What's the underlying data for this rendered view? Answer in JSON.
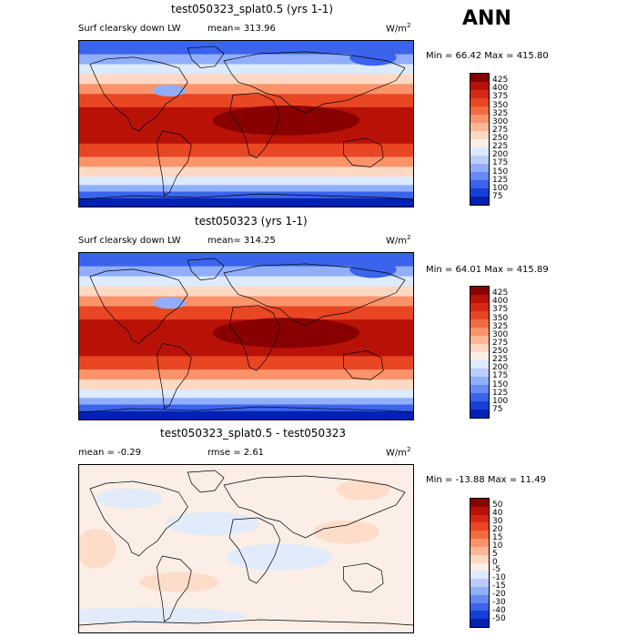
{
  "season": "ANN",
  "colors": {
    "abs_scale": [
      "#000a78",
      "#0022b4",
      "#1540d8",
      "#3b63ec",
      "#6689f4",
      "#91aefa",
      "#bccdfc",
      "#ddeafd",
      "#fbeee6",
      "#fdd9c4",
      "#fcb896",
      "#fa936a",
      "#f36a42",
      "#e94624",
      "#d72815",
      "#b81208",
      "#880000"
    ],
    "diff_scale": [
      "#000a78",
      "#0022b4",
      "#1540d8",
      "#3b63ec",
      "#6689f4",
      "#91aefa",
      "#bccdfc",
      "#ddeafd",
      "#fbeee6",
      "#fdd9c4",
      "#fcb896",
      "#fa936a",
      "#f36a42",
      "#e94624",
      "#d72815",
      "#b81208",
      "#880000"
    ]
  },
  "panels": [
    {
      "title": "test050323_splat0.5 (yrs 1-1)",
      "variable": "Surf clearsky down LW",
      "mean": "mean= 313.96",
      "units": "W/m",
      "units_sup": "2",
      "minmax": "Min =  66.42 Max = 415.80",
      "colorbar_labels": [
        "425",
        "400",
        "375",
        "350",
        "325",
        "300",
        "275",
        "250",
        "225",
        "200",
        "175",
        "150",
        "125",
        "100",
        "75"
      ]
    },
    {
      "title": "test050323 (yrs 1-1)",
      "variable": "Surf clearsky down LW",
      "mean": "mean= 314.25",
      "units": "W/m",
      "units_sup": "2",
      "minmax": "Min =  64.01 Max = 415.89",
      "colorbar_labels": [
        "425",
        "400",
        "375",
        "350",
        "325",
        "300",
        "275",
        "250",
        "225",
        "200",
        "175",
        "150",
        "125",
        "100",
        "75"
      ]
    },
    {
      "title": "test050323_splat0.5 - test050323",
      "mean": "mean =   -0.29",
      "rmse": "rmse =    2.61",
      "units": "W/m",
      "units_sup": "2",
      "minmax": "Min = -13.88 Max =  11.49",
      "colorbar_labels": [
        "50",
        "40",
        "30",
        "20",
        "15",
        "10",
        "5",
        "0",
        "-5",
        "-10",
        "-15",
        "-20",
        "-30",
        "-40",
        "-50"
      ]
    }
  ],
  "chart_data": [
    {
      "type": "heatmap",
      "title": "test050323_splat0.5 (yrs 1-1)",
      "subtitle": "Surf clearsky down LW",
      "units": "W/m2",
      "mean": 313.96,
      "min": 66.42,
      "max": 415.8,
      "colorbar_levels": [
        75,
        100,
        125,
        150,
        175,
        200,
        225,
        250,
        275,
        300,
        325,
        350,
        375,
        400,
        425
      ]
    },
    {
      "type": "heatmap",
      "title": "test050323 (yrs 1-1)",
      "subtitle": "Surf clearsky down LW",
      "units": "W/m2",
      "mean": 314.25,
      "min": 64.01,
      "max": 415.89,
      "colorbar_levels": [
        75,
        100,
        125,
        150,
        175,
        200,
        225,
        250,
        275,
        300,
        325,
        350,
        375,
        400,
        425
      ]
    },
    {
      "type": "heatmap",
      "title": "test050323_splat0.5 - test050323",
      "units": "W/m2",
      "mean": -0.29,
      "rmse": 2.61,
      "min": -13.88,
      "max": 11.49,
      "colorbar_levels": [
        -50,
        -40,
        -30,
        -20,
        -15,
        -10,
        -5,
        0,
        5,
        10,
        15,
        20,
        30,
        40,
        50
      ]
    }
  ]
}
